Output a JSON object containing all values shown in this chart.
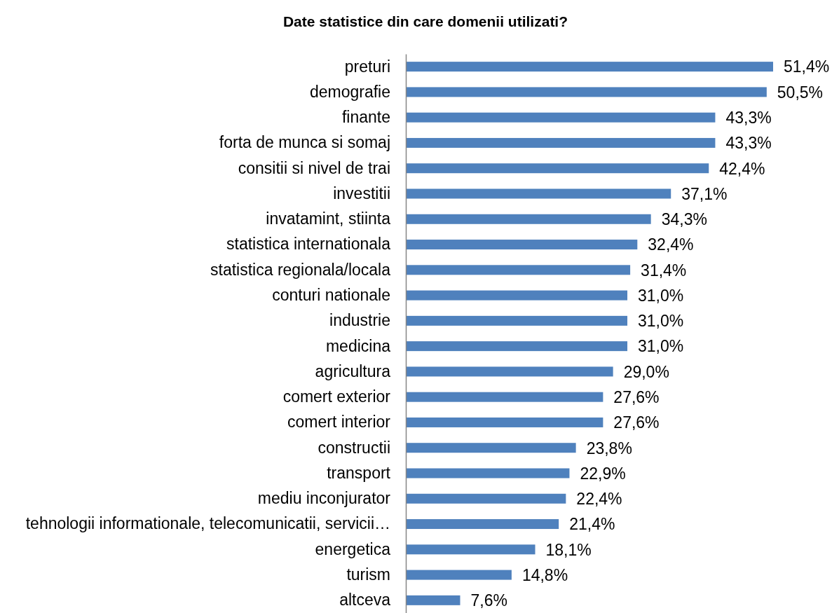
{
  "chart_data": {
    "type": "bar",
    "orientation": "horizontal",
    "title": "Date statistice din care domenii utilizati?",
    "categories": [
      "preturi",
      "demografie",
      "finante",
      "forta de munca si somaj",
      "consitii si nivel de trai",
      "investitii",
      "invatamint, stiinta",
      "statistica internationala",
      "statistica regionala/locala",
      "conturi nationale",
      "industrie",
      "medicina",
      "agricultura",
      "comert exterior",
      "comert interior",
      "constructii",
      "transport",
      "mediu inconjurator",
      "tehnologii informationale, telecomunicatii, servicii…",
      "energetica",
      "turism",
      "altceva"
    ],
    "values": [
      51.4,
      50.5,
      43.3,
      43.3,
      42.4,
      37.1,
      34.3,
      32.4,
      31.4,
      31.0,
      31.0,
      31.0,
      29.0,
      27.6,
      27.6,
      23.8,
      22.9,
      22.4,
      21.4,
      18.1,
      14.8,
      7.6
    ],
    "value_labels": [
      "51,4%",
      "50,5%",
      "43,3%",
      "43,3%",
      "42,4%",
      "37,1%",
      "34,3%",
      "32,4%",
      "31,4%",
      "31,0%",
      "31,0%",
      "31,0%",
      "29,0%",
      "27,6%",
      "27,6%",
      "23,8%",
      "22,9%",
      "22,4%",
      "21,4%",
      "18,1%",
      "14,8%",
      "7,6%"
    ],
    "color": "#4f81bd"
  }
}
